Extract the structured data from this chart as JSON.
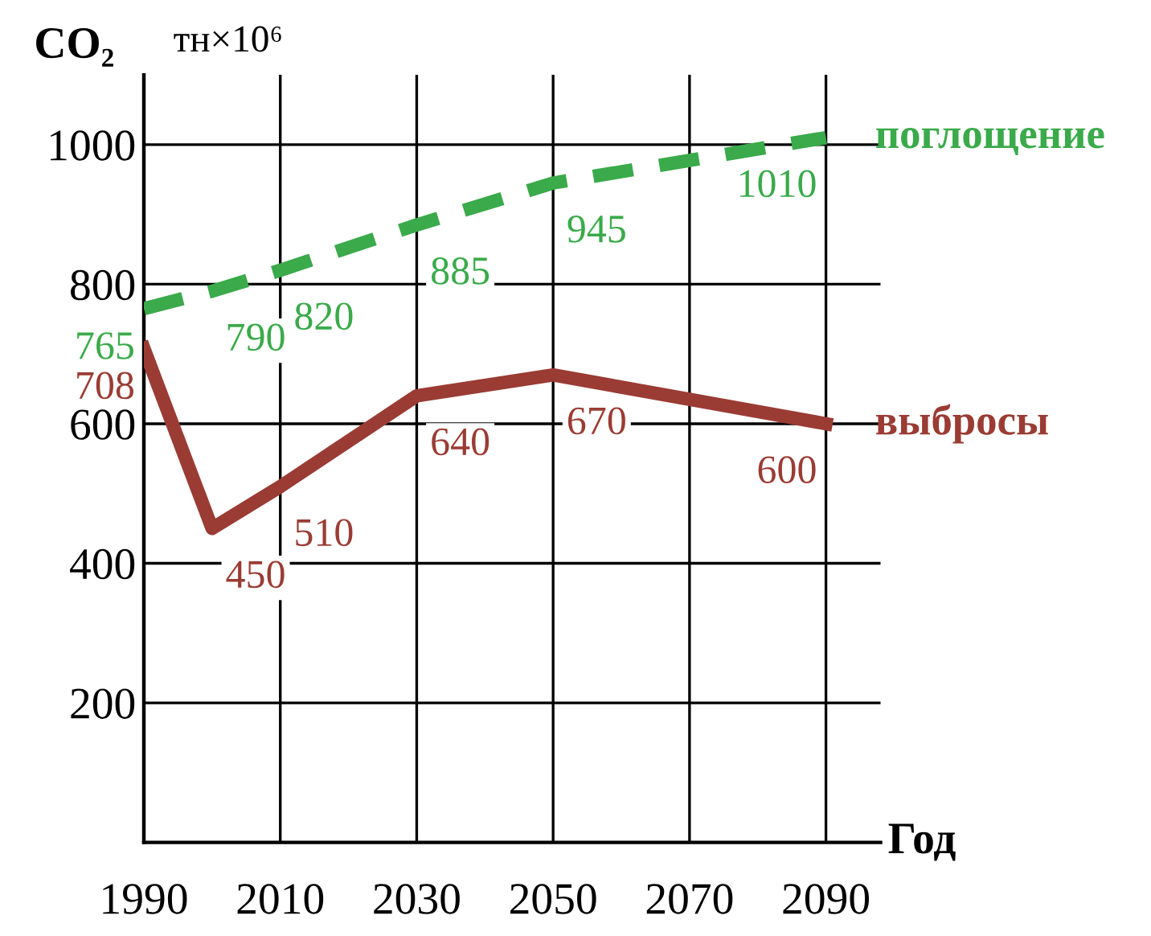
{
  "chart_data": {
    "type": "line",
    "ylabel": "CO₂",
    "xlabel": "Год",
    "annotations": [
      "тн×10⁶"
    ],
    "xlim": [
      1990,
      2098
    ],
    "xticks": [
      1990,
      2010,
      2030,
      2050,
      2070,
      2090
    ],
    "ylim": [
      0,
      1100
    ],
    "yticks": [
      200,
      400,
      600,
      800,
      1000
    ],
    "grid": true,
    "data_labels": true,
    "series": [
      {
        "name": "поглощение",
        "color": "#3aaa4a",
        "line_style": "dashed",
        "x": [
          1990,
          2000,
          2010,
          2030,
          2050,
          2090
        ],
        "values": [
          765,
          790,
          820,
          885,
          945,
          1010
        ]
      },
      {
        "name": "выбросы",
        "color": "#9a3c34",
        "line_style": "solid",
        "x": [
          1990,
          2000,
          2010,
          2030,
          2050,
          2090
        ],
        "values": [
          708,
          450,
          510,
          640,
          670,
          600
        ]
      }
    ]
  }
}
